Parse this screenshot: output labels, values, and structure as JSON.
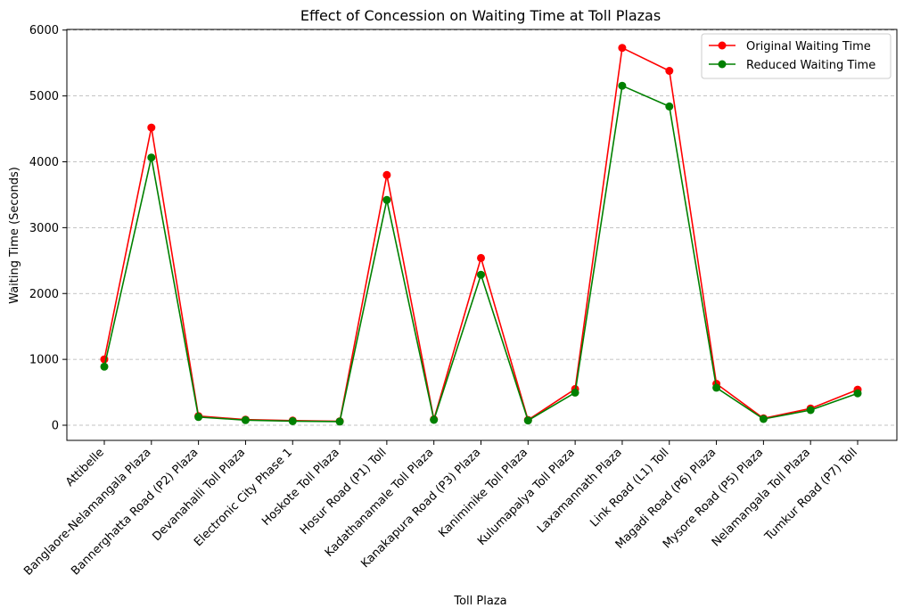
{
  "chart_data": {
    "type": "line",
    "title": "Effect of Concession on Waiting Time at Toll Plazas",
    "xlabel": "Toll Plaza",
    "ylabel": "Waiting Time (Seconds)",
    "categories": [
      "Attibelle",
      "Banglaore-Nelamangala Plaza",
      "Bannerghatta Road (P2) Plaza",
      "Devanahalli Toll Plaza",
      "Electronic  City Phase 1",
      "Hoskote Toll Plaza",
      "Hosur Road (P1) Toll",
      "Kadathanamale Toll Plaza",
      "Kanakapura Road (P3) Plaza",
      "Kaniminike Toll Plaza",
      "Kulumapalya Toll Plaza",
      "Laxamannath Plaza",
      "Link Road (L1) Toll",
      "Magadi Road (P6) Plaza",
      "Mysore Road (P5) Plaza",
      "Nelamangala Toll Plaza",
      "Tumkur Road (P7) Toll"
    ],
    "series": [
      {
        "name": "Original Waiting Time",
        "color": "#ff0000",
        "values": [
          1000,
          4520,
          140,
          85,
          70,
          60,
          3800,
          90,
          2540,
          80,
          550,
          5730,
          5380,
          630,
          105,
          255,
          540
        ]
      },
      {
        "name": "Reduced Waiting Time",
        "color": "#008000",
        "values": [
          890,
          4065,
          125,
          77,
          63,
          55,
          3420,
          81,
          2285,
          72,
          495,
          5155,
          4840,
          570,
          95,
          230,
          485
        ]
      }
    ],
    "ylim": [
      -230,
      6010
    ],
    "yticks": [
      0,
      1000,
      2000,
      3000,
      4000,
      5000,
      6000
    ],
    "grid": "y-dashed",
    "legend": "top-right"
  }
}
